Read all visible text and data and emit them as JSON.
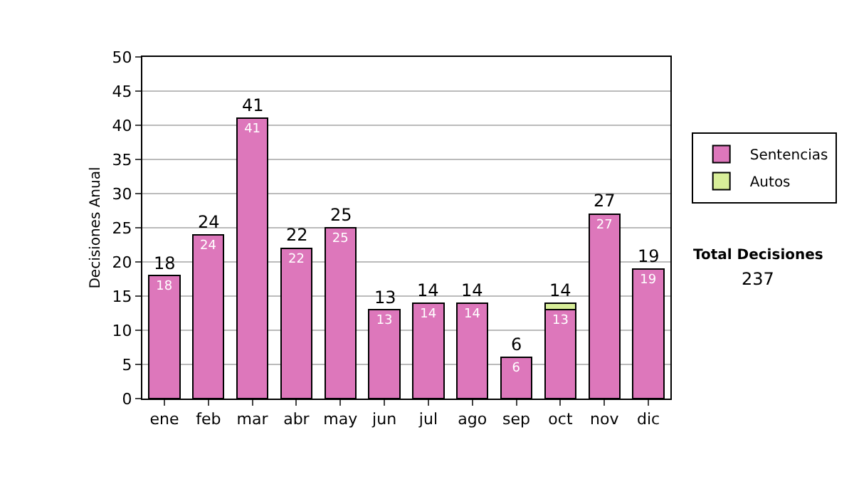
{
  "chart_data": {
    "type": "bar",
    "stacked": true,
    "ylabel": "Decisiones Anual",
    "categories": [
      "ene",
      "feb",
      "mar",
      "abr",
      "may",
      "jun",
      "jul",
      "ago",
      "sep",
      "oct",
      "nov",
      "dic"
    ],
    "series": [
      {
        "name": "Sentencias",
        "color": "#dd77bb",
        "values": [
          18,
          24,
          41,
          22,
          25,
          13,
          14,
          14,
          6,
          13,
          27,
          19
        ],
        "value_labels": [
          "18",
          "24",
          "41",
          "22",
          "25",
          "13",
          "14",
          "14",
          "6",
          "13",
          "27",
          "19"
        ]
      },
      {
        "name": "Autos",
        "color": "#d8ee99",
        "values": [
          null,
          null,
          null,
          null,
          null,
          null,
          null,
          null,
          null,
          1,
          null,
          null
        ]
      }
    ],
    "totals": [
      "18",
      "24",
      "41",
      "22",
      "25",
      "13",
      "14",
      "14",
      "6",
      "14",
      "27",
      "19"
    ],
    "ylim": [
      0,
      50
    ],
    "yticks": [
      0,
      5,
      10,
      15,
      20,
      25,
      30,
      35,
      40,
      45,
      50
    ],
    "grid": "y",
    "legend": "right",
    "annotations": [
      "Total Decisiones",
      "237"
    ]
  }
}
